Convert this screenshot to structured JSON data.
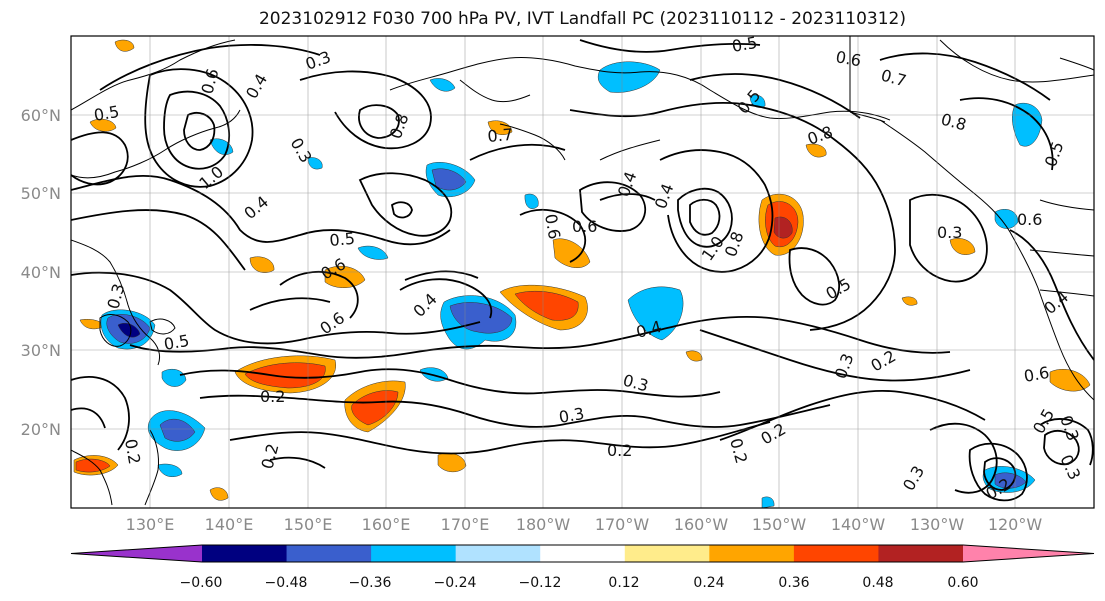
{
  "title": "2023102912 F030 700 hPa PV, IVT Landfall PC (2023110112 - 2023110312)",
  "lat_labels": [
    "60°N",
    "50°N",
    "40°N",
    "30°N",
    "20°N"
  ],
  "lon_labels": [
    "130°E",
    "140°E",
    "150°E",
    "160°E",
    "170°E",
    "180°W",
    "170°W",
    "160°W",
    "150°W",
    "140°W",
    "130°W",
    "120°W"
  ],
  "colorbar": {
    "tick_labels": [
      "−0.60",
      "−0.48",
      "−0.36",
      "−0.24",
      "−0.12",
      "0.12",
      "0.24",
      "0.36",
      "0.48",
      "0.60"
    ],
    "colors": [
      "#9932cc",
      "#000080",
      "#3a5fcd",
      "#00bfff",
      "#b0e2ff",
      "#ffffff",
      "#ffec8b",
      "#ffa500",
      "#ff4500",
      "#b22222",
      "#ff82ab"
    ]
  },
  "contour_labels": [
    "0.5",
    "0.6",
    "0.4",
    "0.3",
    "0.8",
    "0.7",
    "0.6",
    "0.5",
    "0.6",
    "0.7",
    "0.8",
    "0.5",
    "1.0",
    "0.4",
    "0.5",
    "0.6",
    "0.6",
    "0.3",
    "0.8",
    "1.0",
    "0.8",
    "0.5",
    "0.6",
    "0.4",
    "0.4",
    "0.5",
    "0.3",
    "0.2",
    "0.3",
    "0.2",
    "0.3",
    "0.2",
    "0.2",
    "0.3",
    "0.4",
    "0.3",
    "0.2",
    "0.6",
    "0.5",
    "0.4",
    "0.3",
    "0.3",
    "0.2",
    "0.4",
    "0.5",
    "0.6",
    "0.3",
    "0.2",
    "0.2"
  ]
}
